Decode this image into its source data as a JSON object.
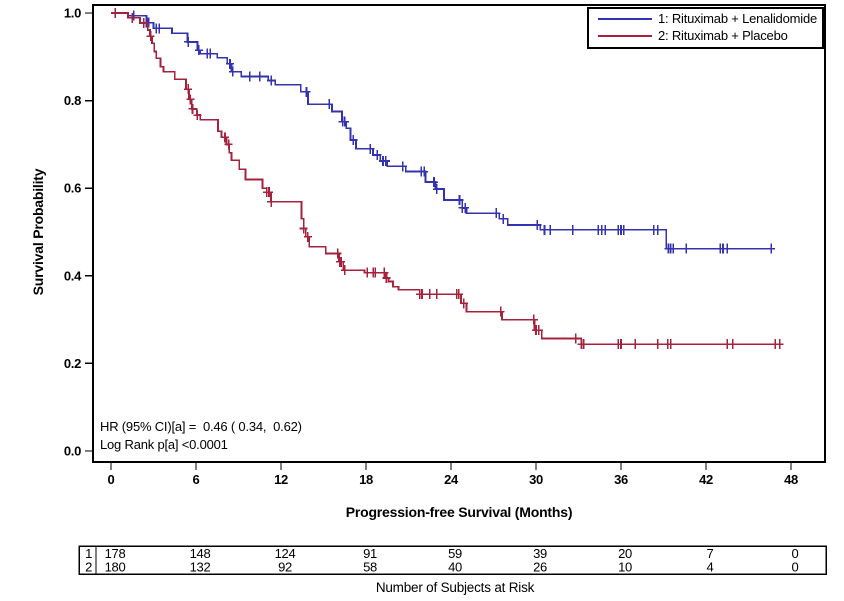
{
  "chart_data": {
    "type": "line",
    "subtype": "kaplan-meier-step",
    "title": "",
    "xlabel": "Progression-free Survival (Months)",
    "ylabel": "Survival Probability",
    "xlim": [
      0,
      48
    ],
    "ylim": [
      0,
      1
    ],
    "grid": false,
    "xticks": [
      0,
      6,
      12,
      18,
      24,
      30,
      36,
      42,
      48
    ],
    "yticks": [
      "0.0",
      "0.2",
      "0.4",
      "0.6",
      "0.8",
      "1.0"
    ],
    "legend_position": "top-right",
    "annotations": [
      "HR (95% CI)[a] =  0.46 ( 0.34,  0.62)",
      "Log Rank p[a] <0.0001"
    ],
    "series": [
      {
        "name": "1: Rituximab + Lenalidomide",
        "color": "#3333B2",
        "end_time": 46.7,
        "steps": [
          [
            0,
            1.0
          ],
          [
            1.2,
            0.994
          ],
          [
            2.5,
            0.978
          ],
          [
            3.0,
            0.965
          ],
          [
            4.3,
            0.954
          ],
          [
            5.4,
            0.934
          ],
          [
            6.1,
            0.915
          ],
          [
            6.3,
            0.907
          ],
          [
            7.5,
            0.898
          ],
          [
            8.2,
            0.884
          ],
          [
            8.5,
            0.866
          ],
          [
            9.2,
            0.855
          ],
          [
            11.1,
            0.846
          ],
          [
            11.6,
            0.836
          ],
          [
            13.4,
            0.82
          ],
          [
            13.9,
            0.792
          ],
          [
            15.6,
            0.775
          ],
          [
            16.3,
            0.752
          ],
          [
            16.6,
            0.737
          ],
          [
            16.9,
            0.71
          ],
          [
            17.3,
            0.69
          ],
          [
            18.5,
            0.676
          ],
          [
            19.0,
            0.662
          ],
          [
            19.5,
            0.65
          ],
          [
            20.8,
            0.638
          ],
          [
            22.2,
            0.614
          ],
          [
            22.9,
            0.598
          ],
          [
            23.5,
            0.573
          ],
          [
            24.8,
            0.555
          ],
          [
            25.1,
            0.543
          ],
          [
            27.4,
            0.53
          ],
          [
            28.0,
            0.516
          ],
          [
            30.3,
            0.505
          ],
          [
            39.2,
            0.462
          ]
        ],
        "censors": [
          1.6,
          2.5,
          2.65,
          3.2,
          3.4,
          5.45,
          6.2,
          6.8,
          7.0,
          8.4,
          8.6,
          9.8,
          10.5,
          11.3,
          13.8,
          15.4,
          16.35,
          16.5,
          17.1,
          18.3,
          18.8,
          19.2,
          19.4,
          20.6,
          21.9,
          22.1,
          22.8,
          23.0,
          24.6,
          24.8,
          25.0,
          27.2,
          27.7,
          30.1,
          30.6,
          31.0,
          32.6,
          34.4,
          34.65,
          34.9,
          35.8,
          36.0,
          36.2,
          38.3,
          38.6,
          39.35,
          39.5,
          39.7,
          40.6,
          43.0,
          43.2,
          43.5,
          46.6
        ]
      },
      {
        "name": "2: Rituximab + Placebo",
        "color": "#A6213C",
        "end_time": 47.4,
        "steps": [
          [
            0,
            1.0
          ],
          [
            1.2,
            0.989
          ],
          [
            2.05,
            0.977
          ],
          [
            2.6,
            0.961
          ],
          [
            2.75,
            0.947
          ],
          [
            2.9,
            0.931
          ],
          [
            3.05,
            0.912
          ],
          [
            3.2,
            0.897
          ],
          [
            3.5,
            0.877
          ],
          [
            3.7,
            0.866
          ],
          [
            4.5,
            0.849
          ],
          [
            5.3,
            0.826
          ],
          [
            5.5,
            0.803
          ],
          [
            5.7,
            0.781
          ],
          [
            6.05,
            0.767
          ],
          [
            6.3,
            0.756
          ],
          [
            7.55,
            0.73
          ],
          [
            7.8,
            0.716
          ],
          [
            8.15,
            0.7
          ],
          [
            8.35,
            0.681
          ],
          [
            8.5,
            0.664
          ],
          [
            9.05,
            0.643
          ],
          [
            9.5,
            0.62
          ],
          [
            10.7,
            0.6
          ],
          [
            11.0,
            0.591
          ],
          [
            11.3,
            0.569
          ],
          [
            13.45,
            0.53
          ],
          [
            13.6,
            0.508
          ],
          [
            13.75,
            0.489
          ],
          [
            14.0,
            0.466
          ],
          [
            15.15,
            0.451
          ],
          [
            16.1,
            0.432
          ],
          [
            16.4,
            0.413
          ],
          [
            17.9,
            0.407
          ],
          [
            19.35,
            0.395
          ],
          [
            19.6,
            0.387
          ],
          [
            19.9,
            0.375
          ],
          [
            20.3,
            0.368
          ],
          [
            21.8,
            0.358
          ],
          [
            24.7,
            0.337
          ],
          [
            25.1,
            0.318
          ],
          [
            27.6,
            0.3
          ],
          [
            29.9,
            0.276
          ],
          [
            30.4,
            0.257
          ],
          [
            33.2,
            0.244
          ]
        ],
        "censors": [
          0.3,
          1.5,
          2.3,
          2.8,
          5.45,
          5.6,
          5.75,
          6.1,
          8.05,
          8.3,
          11.0,
          11.15,
          11.3,
          13.6,
          13.9,
          16.0,
          16.15,
          16.25,
          16.5,
          18.1,
          18.5,
          18.65,
          19.3,
          19.45,
          21.8,
          21.95,
          22.5,
          23.0,
          24.4,
          24.55,
          24.9,
          27.5,
          29.85,
          30.0,
          30.2,
          32.8,
          33.2,
          33.35,
          35.8,
          36.0,
          37.0,
          38.6,
          39.3,
          39.5,
          43.5,
          43.9,
          46.9,
          47.2
        ]
      }
    ],
    "risk_table": {
      "caption": "Number of Subjects at Risk",
      "times": [
        0,
        6,
        12,
        18,
        24,
        30,
        36,
        42,
        48
      ],
      "rows": [
        {
          "label": "1",
          "counts": [
            "178",
            "148",
            "124",
            "91",
            "59",
            "39",
            "20",
            "7",
            "0"
          ]
        },
        {
          "label": "2",
          "counts": [
            "180",
            "132",
            "92",
            "58",
            "40",
            "26",
            "10",
            "4",
            "0"
          ]
        }
      ]
    }
  }
}
